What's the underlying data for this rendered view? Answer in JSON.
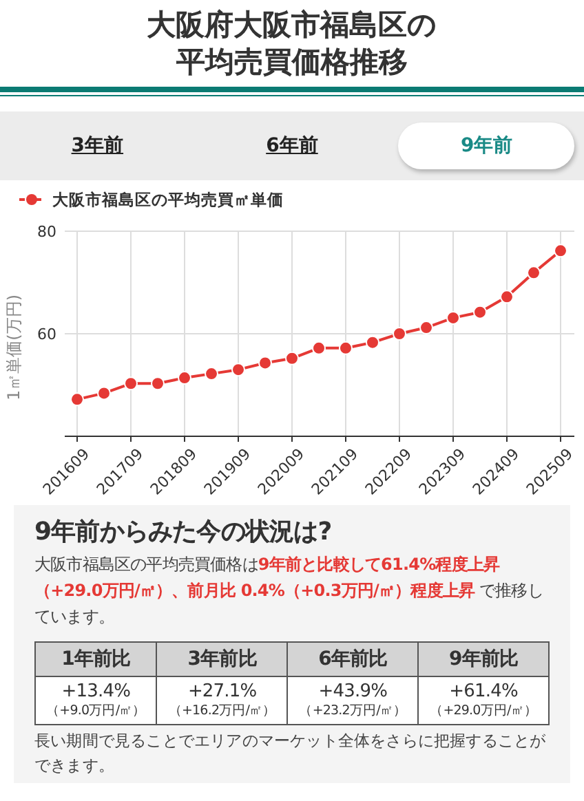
{
  "chart_data": {
    "type": "line",
    "title": "大阪府大阪市福島区の平均売買価格推移",
    "ylabel": "1㎡単価(万円)",
    "categories": [
      "201609",
      null,
      "201709",
      null,
      "201809",
      null,
      "201909",
      null,
      "202009",
      null,
      "202109",
      null,
      "202209",
      null,
      "202309",
      null,
      "202409",
      null,
      "202509"
    ],
    "series": [
      {
        "name": "大阪市福島区の平均売買㎡単価",
        "color": "#e53935",
        "values": [
          47.2,
          48.4,
          50.3,
          50.3,
          51.4,
          52.2,
          53.0,
          54.3,
          55.2,
          57.2,
          57.2,
          58.3,
          60.0,
          61.2,
          63.1,
          64.2,
          67.2,
          71.9,
          76.2
        ]
      }
    ],
    "ylim": [
      40,
      80
    ],
    "yticks": [
      60,
      80
    ],
    "grid": true,
    "legend": "top left",
    "marker": "circle",
    "line_style": "solid",
    "annotations": [
      "3年前",
      "6年前",
      "9年前",
      "9年前からみた今の状況は?",
      "大阪市福島区の平均売買価格は",
      "9年前と比較して61.4%程度上昇（+29.0万円/㎡）、前月比 0.4%（+0.3万円/㎡）程度上昇",
      " で推移しています。",
      "1年前比",
      "3年前比",
      "6年前比",
      "9年前比",
      "+13.4%",
      "（+9.0万円/㎡）",
      "+27.1%",
      "（+16.2万円/㎡）",
      "+43.9%",
      "（+23.2万円/㎡）",
      "+61.4%",
      "（+29.0万円/㎡）",
      "長い期間で見ることでエリアのマーケット全体をさらに把握することができます。"
    ]
  }
}
